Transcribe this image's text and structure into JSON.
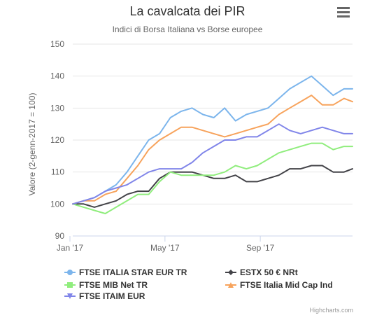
{
  "chart_data": {
    "type": "line",
    "title": "La cavalcata dei PIR",
    "subtitle": "Indici di Borsa Italiana vs Borse europee",
    "ylabel": "Valore (2-genn-2017 = 100)",
    "xlabel": "",
    "ylim": [
      90,
      150
    ],
    "yticks": [
      "90",
      "100",
      "110",
      "120",
      "130",
      "140",
      "150"
    ],
    "xlim": [
      "2017-01-02",
      "2017-12-29"
    ],
    "xticks": [
      {
        "date": "2017-01-01",
        "label": "Jan '17"
      },
      {
        "date": "2017-05-01",
        "label": "May '17"
      },
      {
        "date": "2017-09-01",
        "label": "Sep '17"
      }
    ],
    "grid": true,
    "legend_position": "bottom",
    "credits": "Highcharts.com",
    "series": [
      {
        "name": "FTSE ITALIA STAR EUR TR",
        "color": "#7cb5ec",
        "legend_row": 0,
        "legend_col": 0,
        "points": [
          [
            "2017-01-02",
            100
          ],
          [
            "2017-01-16",
            101
          ],
          [
            "2017-01-30",
            102
          ],
          [
            "2017-02-13",
            104
          ],
          [
            "2017-02-27",
            106
          ],
          [
            "2017-03-13",
            110
          ],
          [
            "2017-03-27",
            115
          ],
          [
            "2017-04-10",
            120
          ],
          [
            "2017-04-24",
            122
          ],
          [
            "2017-05-08",
            127
          ],
          [
            "2017-05-22",
            129
          ],
          [
            "2017-06-05",
            130
          ],
          [
            "2017-06-19",
            128
          ],
          [
            "2017-07-03",
            127
          ],
          [
            "2017-07-17",
            130
          ],
          [
            "2017-07-31",
            126
          ],
          [
            "2017-08-14",
            128
          ],
          [
            "2017-08-28",
            129
          ],
          [
            "2017-09-11",
            130
          ],
          [
            "2017-09-25",
            133
          ],
          [
            "2017-10-09",
            136
          ],
          [
            "2017-10-23",
            138
          ],
          [
            "2017-11-06",
            140
          ],
          [
            "2017-11-20",
            137
          ],
          [
            "2017-12-04",
            134
          ],
          [
            "2017-12-18",
            136
          ],
          [
            "2017-12-29",
            136
          ]
        ]
      },
      {
        "name": "ESTX 50 € NRt",
        "color": "#434348",
        "legend_row": 0,
        "legend_col": 1,
        "points": [
          [
            "2017-01-02",
            100
          ],
          [
            "2017-01-16",
            100
          ],
          [
            "2017-01-30",
            99
          ],
          [
            "2017-02-13",
            100
          ],
          [
            "2017-02-27",
            101
          ],
          [
            "2017-03-13",
            103
          ],
          [
            "2017-03-27",
            104
          ],
          [
            "2017-04-10",
            104
          ],
          [
            "2017-04-24",
            108
          ],
          [
            "2017-05-08",
            110
          ],
          [
            "2017-05-22",
            110
          ],
          [
            "2017-06-05",
            110
          ],
          [
            "2017-06-19",
            109
          ],
          [
            "2017-07-03",
            108
          ],
          [
            "2017-07-17",
            108
          ],
          [
            "2017-07-31",
            109
          ],
          [
            "2017-08-14",
            107
          ],
          [
            "2017-08-28",
            107
          ],
          [
            "2017-09-11",
            108
          ],
          [
            "2017-09-25",
            109
          ],
          [
            "2017-10-09",
            111
          ],
          [
            "2017-10-23",
            111
          ],
          [
            "2017-11-06",
            112
          ],
          [
            "2017-11-20",
            112
          ],
          [
            "2017-12-04",
            110
          ],
          [
            "2017-12-18",
            110
          ],
          [
            "2017-12-29",
            111
          ]
        ]
      },
      {
        "name": "FTSE MIB Net TR",
        "color": "#90ed7d",
        "legend_row": 1,
        "legend_col": 0,
        "points": [
          [
            "2017-01-02",
            100
          ],
          [
            "2017-01-16",
            99
          ],
          [
            "2017-01-30",
            98
          ],
          [
            "2017-02-13",
            97
          ],
          [
            "2017-02-27",
            99
          ],
          [
            "2017-03-13",
            101
          ],
          [
            "2017-03-27",
            103
          ],
          [
            "2017-04-10",
            103
          ],
          [
            "2017-04-24",
            107
          ],
          [
            "2017-05-08",
            110
          ],
          [
            "2017-05-22",
            109
          ],
          [
            "2017-06-05",
            109
          ],
          [
            "2017-06-19",
            109
          ],
          [
            "2017-07-03",
            109
          ],
          [
            "2017-07-17",
            110
          ],
          [
            "2017-07-31",
            112
          ],
          [
            "2017-08-14",
            111
          ],
          [
            "2017-08-28",
            112
          ],
          [
            "2017-09-11",
            114
          ],
          [
            "2017-09-25",
            116
          ],
          [
            "2017-10-09",
            117
          ],
          [
            "2017-10-23",
            118
          ],
          [
            "2017-11-06",
            119
          ],
          [
            "2017-11-20",
            119
          ],
          [
            "2017-12-04",
            117
          ],
          [
            "2017-12-18",
            118
          ],
          [
            "2017-12-29",
            118
          ]
        ]
      },
      {
        "name": "FTSE Italia Mid Cap Ind",
        "color": "#f7a35c",
        "legend_row": 1,
        "legend_col": 1,
        "points": [
          [
            "2017-01-02",
            100
          ],
          [
            "2017-01-16",
            101
          ],
          [
            "2017-01-30",
            101
          ],
          [
            "2017-02-13",
            103
          ],
          [
            "2017-02-27",
            104
          ],
          [
            "2017-03-13",
            108
          ],
          [
            "2017-03-27",
            112
          ],
          [
            "2017-04-10",
            117
          ],
          [
            "2017-04-24",
            120
          ],
          [
            "2017-05-08",
            122
          ],
          [
            "2017-05-22",
            124
          ],
          [
            "2017-06-05",
            124
          ],
          [
            "2017-06-19",
            123
          ],
          [
            "2017-07-03",
            122
          ],
          [
            "2017-07-17",
            121
          ],
          [
            "2017-07-31",
            122
          ],
          [
            "2017-08-14",
            123
          ],
          [
            "2017-08-28",
            124
          ],
          [
            "2017-09-11",
            125
          ],
          [
            "2017-09-25",
            128
          ],
          [
            "2017-10-09",
            130
          ],
          [
            "2017-10-23",
            132
          ],
          [
            "2017-11-06",
            134
          ],
          [
            "2017-11-20",
            131
          ],
          [
            "2017-12-04",
            131
          ],
          [
            "2017-12-18",
            133
          ],
          [
            "2017-12-29",
            132
          ]
        ]
      },
      {
        "name": "FTSE ITAIM EUR",
        "color": "#8085e9",
        "legend_row": 2,
        "legend_col": 0,
        "points": [
          [
            "2017-01-02",
            100
          ],
          [
            "2017-01-16",
            101
          ],
          [
            "2017-01-30",
            102
          ],
          [
            "2017-02-13",
            104
          ],
          [
            "2017-02-27",
            105
          ],
          [
            "2017-03-13",
            106
          ],
          [
            "2017-03-27",
            108
          ],
          [
            "2017-04-10",
            110
          ],
          [
            "2017-04-24",
            111
          ],
          [
            "2017-05-08",
            111
          ],
          [
            "2017-05-22",
            111
          ],
          [
            "2017-06-05",
            113
          ],
          [
            "2017-06-19",
            116
          ],
          [
            "2017-07-03",
            118
          ],
          [
            "2017-07-17",
            120
          ],
          [
            "2017-07-31",
            120
          ],
          [
            "2017-08-14",
            121
          ],
          [
            "2017-08-28",
            121
          ],
          [
            "2017-09-11",
            123
          ],
          [
            "2017-09-25",
            125
          ],
          [
            "2017-10-09",
            123
          ],
          [
            "2017-10-23",
            122
          ],
          [
            "2017-11-06",
            123
          ],
          [
            "2017-11-20",
            124
          ],
          [
            "2017-12-04",
            123
          ],
          [
            "2017-12-18",
            122
          ],
          [
            "2017-12-29",
            122
          ]
        ]
      }
    ]
  },
  "icons": {
    "menu": "hamburger-menu-icon"
  }
}
